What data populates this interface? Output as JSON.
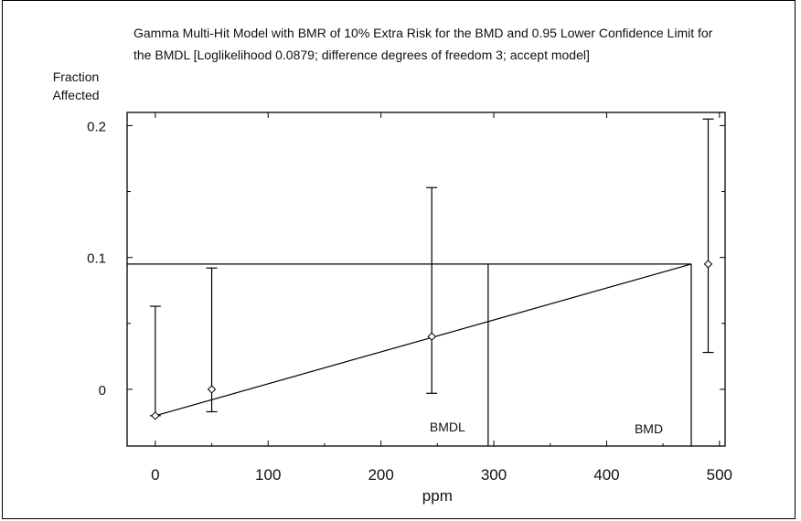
{
  "chart_data": {
    "type": "scatter",
    "title": "Gamma Multi-Hit Model with BMR of 10% Extra Risk for the BMD and 0.95 Lower Confidence Limit for the BMDL [Loglikelihood 0.0879; difference degrees of freedom 3; accept model]",
    "xlabel": "ppm",
    "ylabel": "Fraction Affected",
    "xlim": [
      -25,
      505
    ],
    "ylim": [
      -0.043,
      0.21
    ],
    "x_ticks": [
      0,
      100,
      200,
      300,
      400,
      500
    ],
    "y_ticks": [
      0,
      0.1,
      0.2
    ],
    "grid": false,
    "points": [
      {
        "x": 0,
        "y": -0.02,
        "lower": -0.02,
        "upper": 0.063
      },
      {
        "x": 50,
        "y": 0,
        "lower": -0.017,
        "upper": 0.092
      },
      {
        "x": 245,
        "y": 0.04,
        "lower": -0.003,
        "upper": 0.153
      },
      {
        "x": 490,
        "y": 0.095,
        "lower": 0.028,
        "upper": 0.205
      }
    ],
    "model_curve": {
      "x": [
        0,
        475
      ],
      "y": [
        -0.02,
        0.095
      ]
    },
    "bmr_level": 0.095,
    "bmdl": 295,
    "bmd": 475,
    "annotations": [
      "BMDL",
      "BMD"
    ]
  }
}
